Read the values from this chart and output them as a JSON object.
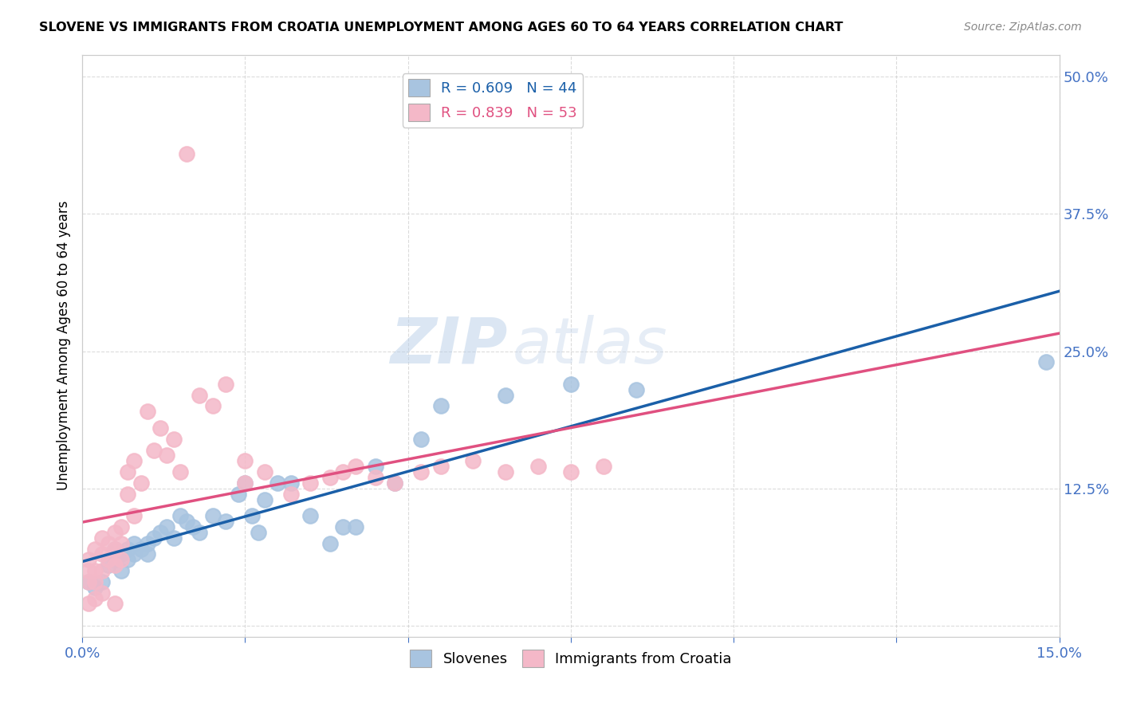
{
  "title": "SLOVENE VS IMMIGRANTS FROM CROATIA UNEMPLOYMENT AMONG AGES 60 TO 64 YEARS CORRELATION CHART",
  "source": "Source: ZipAtlas.com",
  "ylabel": "Unemployment Among Ages 60 to 64 years",
  "xlim": [
    0.0,
    0.15
  ],
  "ylim": [
    -0.01,
    0.52
  ],
  "xticks": [
    0.0,
    0.025,
    0.05,
    0.075,
    0.1,
    0.125,
    0.15
  ],
  "xtick_labels": [
    "0.0%",
    "",
    "",
    "",
    "",
    "",
    "15.0%"
  ],
  "ytick_labels": [
    "",
    "12.5%",
    "25.0%",
    "37.5%",
    "50.0%"
  ],
  "yticks": [
    0.0,
    0.125,
    0.25,
    0.375,
    0.5
  ],
  "watermark_zip": "ZIP",
  "watermark_atlas": "atlas",
  "legend_blue_label": "R = 0.609   N = 44",
  "legend_pink_label": "R = 0.839   N = 53",
  "slovene_color": "#a8c4e0",
  "croatia_color": "#f4b8c8",
  "trend_blue": "#1a5fa8",
  "trend_pink": "#e05080",
  "slovene_x": [
    0.001,
    0.002,
    0.003,
    0.004,
    0.005,
    0.005,
    0.006,
    0.006,
    0.007,
    0.007,
    0.008,
    0.008,
    0.009,
    0.01,
    0.01,
    0.011,
    0.012,
    0.013,
    0.014,
    0.015,
    0.016,
    0.017,
    0.018,
    0.02,
    0.022,
    0.024,
    0.025,
    0.026,
    0.027,
    0.028,
    0.03,
    0.032,
    0.035,
    0.038,
    0.04,
    0.042,
    0.045,
    0.048,
    0.052,
    0.055,
    0.065,
    0.075,
    0.085,
    0.148
  ],
  "slovene_y": [
    0.04,
    0.035,
    0.04,
    0.055,
    0.06,
    0.07,
    0.05,
    0.065,
    0.06,
    0.07,
    0.065,
    0.075,
    0.07,
    0.065,
    0.075,
    0.08,
    0.085,
    0.09,
    0.08,
    0.1,
    0.095,
    0.09,
    0.085,
    0.1,
    0.095,
    0.12,
    0.13,
    0.1,
    0.085,
    0.115,
    0.13,
    0.13,
    0.1,
    0.075,
    0.09,
    0.09,
    0.145,
    0.13,
    0.17,
    0.2,
    0.21,
    0.22,
    0.215,
    0.24
  ],
  "croatia_x": [
    0.001,
    0.001,
    0.001,
    0.002,
    0.002,
    0.002,
    0.003,
    0.003,
    0.003,
    0.004,
    0.004,
    0.005,
    0.005,
    0.005,
    0.006,
    0.006,
    0.006,
    0.007,
    0.007,
    0.008,
    0.008,
    0.009,
    0.01,
    0.011,
    0.012,
    0.013,
    0.014,
    0.015,
    0.016,
    0.018,
    0.02,
    0.022,
    0.025,
    0.028,
    0.032,
    0.035,
    0.038,
    0.04,
    0.042,
    0.045,
    0.048,
    0.052,
    0.055,
    0.06,
    0.065,
    0.07,
    0.075,
    0.08,
    0.005,
    0.003,
    0.002,
    0.001,
    0.025
  ],
  "croatia_y": [
    0.04,
    0.05,
    0.06,
    0.04,
    0.05,
    0.07,
    0.05,
    0.065,
    0.08,
    0.06,
    0.075,
    0.055,
    0.07,
    0.085,
    0.06,
    0.075,
    0.09,
    0.12,
    0.14,
    0.1,
    0.15,
    0.13,
    0.195,
    0.16,
    0.18,
    0.155,
    0.17,
    0.14,
    0.43,
    0.21,
    0.2,
    0.22,
    0.13,
    0.14,
    0.12,
    0.13,
    0.135,
    0.14,
    0.145,
    0.135,
    0.13,
    0.14,
    0.145,
    0.15,
    0.14,
    0.145,
    0.14,
    0.145,
    0.02,
    0.03,
    0.025,
    0.02,
    0.15
  ]
}
